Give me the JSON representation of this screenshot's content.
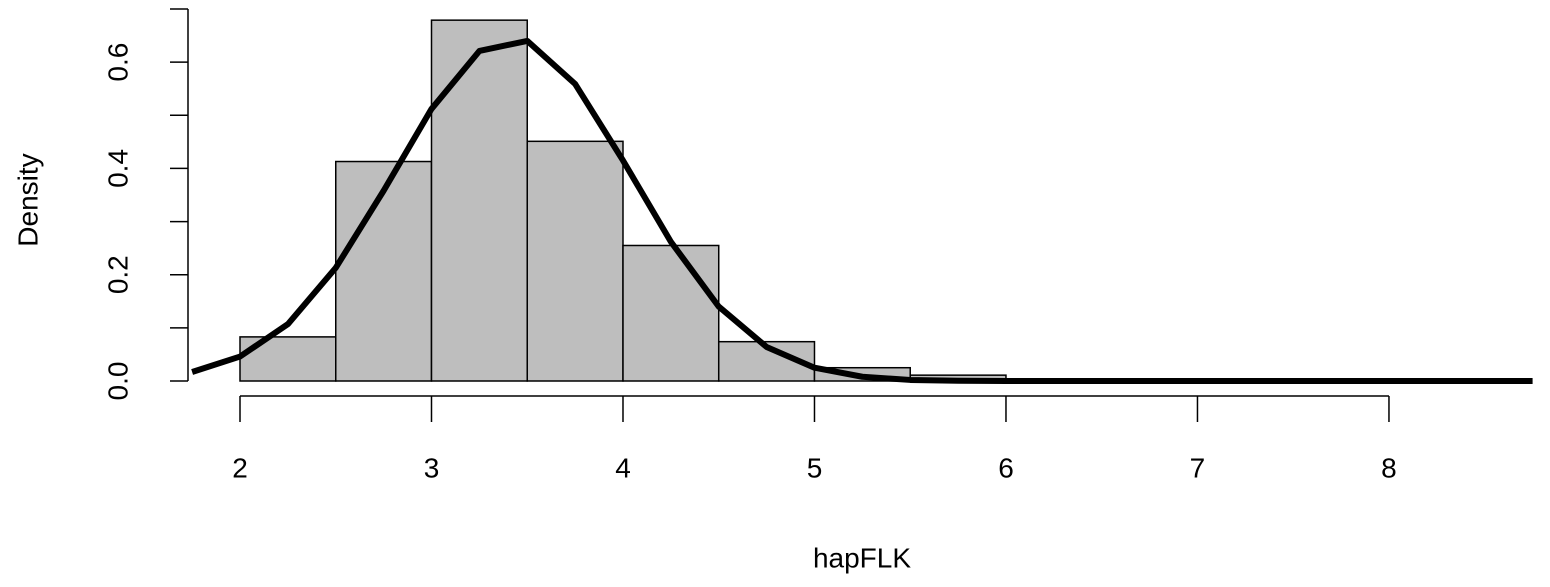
{
  "chart_data": {
    "type": "histogram",
    "xlabel": "hapFLK",
    "ylabel": "Density",
    "bins": [
      2,
      2.5,
      3,
      3.5,
      4,
      4.5,
      5,
      5.5,
      6,
      6.5
    ],
    "values": [
      0.083,
      0.413,
      0.679,
      0.451,
      0.255,
      0.074,
      0.025,
      0.011,
      0.003
    ],
    "color": "#bebebe",
    "curve": {
      "color": "#000000",
      "x": [
        1.75,
        2,
        2.25,
        2.5,
        2.75,
        3,
        3.25,
        3.5,
        3.75,
        4,
        4.25,
        4.5,
        4.75,
        5,
        5.25,
        5.5,
        5.75,
        6,
        6.25,
        6.5,
        6.75,
        7,
        7.25,
        7.5,
        7.75,
        8,
        8.25,
        8.5,
        8.75
      ],
      "values": [
        0.017,
        0.046,
        0.107,
        0.213,
        0.358,
        0.512,
        0.621,
        0.64,
        0.559,
        0.415,
        0.262,
        0.14,
        0.064,
        0.025,
        0.008,
        0.002,
        0.0005,
        0.0001,
        0,
        0,
        0,
        0,
        0,
        0,
        0,
        0,
        0,
        0,
        0
      ]
    },
    "xlim": [
      1.73,
      8.76
    ],
    "ylim": [
      0,
      0.7
    ],
    "xticks": [
      2,
      3,
      4,
      5,
      6,
      7,
      8
    ],
    "yticks": [
      {
        "value": 0,
        "label": "0.0"
      },
      {
        "value": 0.1,
        "label": null
      },
      {
        "value": 0.2,
        "label": "0.2"
      },
      {
        "value": 0.3,
        "label": null
      },
      {
        "value": 0.4,
        "label": "0.4"
      },
      {
        "value": 0.5,
        "label": null
      },
      {
        "value": 0.6,
        "label": "0.6"
      },
      {
        "value": 0.7,
        "label": null
      }
    ]
  }
}
